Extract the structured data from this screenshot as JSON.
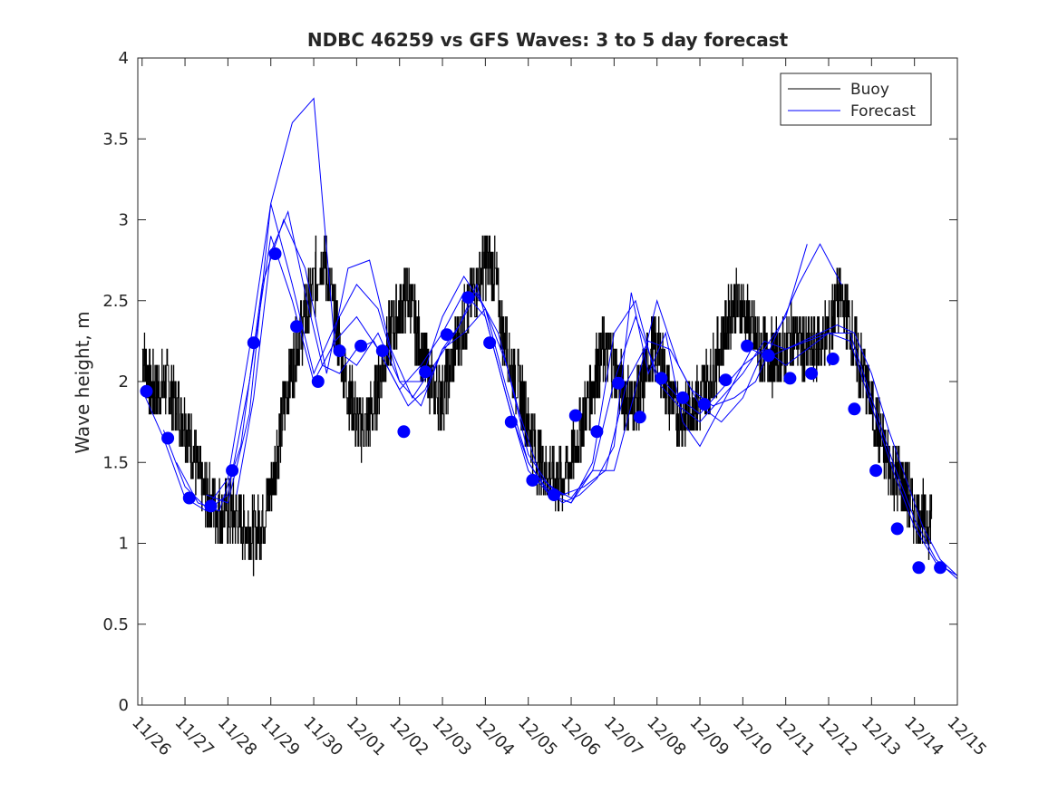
{
  "chart_data": {
    "type": "line",
    "title": "NDBC 46259 vs GFS Waves: 3 to 5 day forecast",
    "xlabel": "",
    "ylabel": "Wave height, m",
    "x_unit": "days since 11/26",
    "xlim": [
      -0.1,
      19.0
    ],
    "ylim": [
      0,
      4
    ],
    "yticks": [
      0,
      0.5,
      1,
      1.5,
      2,
      2.5,
      3,
      3.5,
      4
    ],
    "ytick_labels": [
      "0",
      "0.5",
      "1",
      "1.5",
      "2",
      "2.5",
      "3",
      "3.5",
      "4"
    ],
    "xticks": [
      0,
      1,
      2,
      3,
      4,
      5,
      6,
      7,
      8,
      9,
      10,
      11,
      12,
      13,
      14,
      15,
      16,
      17,
      18,
      19
    ],
    "xtick_labels": [
      "11/26",
      "11/27",
      "11/28",
      "11/29",
      "11/30",
      "12/01",
      "12/02",
      "12/03",
      "12/04",
      "12/05",
      "12/06",
      "12/07",
      "12/08",
      "12/09",
      "12/10",
      "12/11",
      "12/12",
      "12/13",
      "12/14",
      "12/15"
    ],
    "legend": {
      "position": "top-right",
      "entries": [
        {
          "label": "Buoy",
          "color": "#000000"
        },
        {
          "label": "Forecast",
          "color": "#0000ff"
        }
      ]
    },
    "colors": {
      "buoy": "#000000",
      "forecast": "#0000ff",
      "points": "#0000ff",
      "axis": "#262626"
    },
    "series": [
      {
        "name": "Buoy",
        "kind": "line",
        "noisy": true,
        "x": [
          0,
          0.2,
          0.4,
          0.6,
          0.8,
          1.0,
          1.2,
          1.4,
          1.6,
          1.8,
          2.0,
          2.2,
          2.4,
          2.6,
          2.8,
          3.0,
          3.2,
          3.4,
          3.6,
          3.8,
          4.0,
          4.2,
          4.4,
          4.6,
          4.8,
          5.0,
          5.2,
          5.4,
          5.6,
          5.8,
          6.0,
          6.2,
          6.4,
          6.6,
          6.8,
          7.0,
          7.2,
          7.4,
          7.6,
          7.8,
          8.0,
          8.2,
          8.4,
          8.6,
          8.8,
          9.0,
          9.2,
          9.4,
          9.6,
          9.8,
          10.0,
          10.2,
          10.4,
          10.6,
          10.8,
          11.0,
          11.2,
          11.4,
          11.6,
          11.8,
          12.0,
          12.2,
          12.4,
          12.6,
          12.8,
          13.0,
          13.2,
          13.4,
          13.6,
          13.8,
          14.0,
          14.2,
          14.4,
          14.6,
          14.8,
          15.0,
          15.2,
          15.4,
          15.6,
          15.8,
          16.0,
          16.2,
          16.4,
          16.6,
          16.8,
          17.0,
          17.2,
          17.4,
          17.6,
          17.8,
          18.0,
          18.2,
          18.4
        ],
        "y": [
          2.2,
          1.95,
          1.95,
          2.0,
          1.85,
          1.75,
          1.55,
          1.35,
          1.25,
          1.2,
          1.2,
          1.15,
          1.1,
          1.05,
          1.15,
          1.35,
          1.65,
          2.0,
          2.2,
          2.4,
          2.6,
          2.8,
          2.55,
          2.2,
          1.95,
          1.75,
          1.7,
          1.85,
          2.1,
          2.3,
          2.45,
          2.55,
          2.3,
          2.1,
          1.95,
          1.9,
          2.1,
          2.3,
          2.45,
          2.6,
          2.75,
          2.7,
          2.3,
          2.1,
          1.95,
          1.75,
          1.55,
          1.45,
          1.4,
          1.4,
          1.5,
          1.7,
          1.9,
          2.1,
          2.2,
          2.1,
          1.95,
          1.85,
          1.9,
          2.15,
          2.2,
          2.0,
          1.85,
          1.8,
          1.85,
          1.9,
          2.0,
          2.15,
          2.35,
          2.5,
          2.45,
          2.3,
          2.2,
          2.15,
          2.15,
          2.2,
          2.3,
          2.2,
          2.2,
          2.25,
          2.3,
          2.5,
          2.45,
          2.2,
          2.05,
          1.85,
          1.65,
          1.5,
          1.4,
          1.3,
          1.2,
          1.15,
          1.15
        ]
      },
      {
        "name": "Forecast 1",
        "kind": "line",
        "x": [
          0,
          0.5,
          1.0,
          1.5,
          2.0,
          2.5,
          3.0,
          3.5,
          4.0,
          4.5,
          5.0,
          5.5,
          6.0,
          6.5,
          7.0,
          7.5,
          8.0,
          8.5,
          9.0,
          9.5,
          10.0,
          10.5,
          11.0,
          11.5,
          12.0,
          12.5,
          13.0,
          13.5,
          14.0,
          14.5,
          15.0,
          15.5,
          16.0,
          16.5,
          17.0,
          17.5,
          18.0,
          18.5,
          19.0
        ],
        "y": [
          1.95,
          1.65,
          1.28,
          1.2,
          1.3,
          2.0,
          2.9,
          2.5,
          2.0,
          2.25,
          2.4,
          2.2,
          1.95,
          2.1,
          2.3,
          2.55,
          2.4,
          1.9,
          1.45,
          1.3,
          1.25,
          1.45,
          2.0,
          2.4,
          2.05,
          1.9,
          1.8,
          1.95,
          2.1,
          2.2,
          2.1,
          2.2,
          2.3,
          2.3,
          1.9,
          1.5,
          1.15,
          0.9,
          0.78
        ]
      },
      {
        "name": "Forecast 2",
        "kind": "line",
        "x": [
          0.5,
          1.0,
          1.5,
          2.0,
          2.5,
          3.0,
          3.5,
          4.0,
          4.5,
          5.0,
          5.5,
          6.0,
          6.5,
          7.0,
          7.5,
          8.0,
          8.5,
          9.0,
          9.5,
          10.0,
          10.5,
          11.0,
          11.5,
          12.0,
          12.5,
          13.0,
          13.5,
          14.0,
          14.5,
          15.0,
          15.5,
          16.0,
          16.5,
          17.0,
          17.5,
          18.0,
          18.5,
          19.0
        ],
        "y": [
          1.7,
          1.35,
          1.22,
          1.4,
          2.2,
          3.1,
          2.6,
          2.05,
          2.35,
          2.6,
          2.45,
          2.0,
          2.0,
          2.4,
          2.65,
          2.45,
          1.95,
          1.5,
          1.3,
          1.25,
          1.5,
          2.3,
          2.5,
          2.0,
          1.85,
          1.75,
          1.9,
          2.05,
          2.25,
          2.2,
          2.25,
          2.3,
          2.25,
          1.85,
          1.45,
          1.1,
          0.88,
          0.8
        ]
      },
      {
        "name": "Forecast 3",
        "kind": "line",
        "x": [
          2.2,
          2.6,
          3.0,
          3.4,
          3.8,
          4.2,
          4.6,
          5.0,
          5.4,
          5.8,
          6.2,
          6.6,
          7.0,
          7.4,
          7.8,
          8.2,
          8.6,
          9.0,
          9.4,
          9.8,
          10.2,
          10.6,
          11.0,
          11.4,
          11.8,
          12.2,
          12.6,
          13.0,
          13.4,
          13.8,
          14.2,
          14.6,
          15.0,
          15.4,
          15.8,
          16.2,
          16.6,
          17.0,
          17.4,
          17.8,
          18.2,
          18.6,
          19.0
        ],
        "y": [
          1.3,
          1.9,
          2.8,
          3.05,
          2.55,
          2.1,
          2.05,
          2.2,
          2.25,
          2.05,
          1.85,
          1.95,
          2.2,
          2.35,
          2.6,
          2.2,
          1.8,
          1.5,
          1.35,
          1.25,
          1.3,
          1.4,
          1.6,
          2.55,
          2.05,
          2.3,
          1.75,
          1.6,
          1.8,
          2.0,
          2.2,
          2.15,
          2.2,
          2.25,
          2.3,
          2.35,
          2.3,
          2.05,
          1.7,
          1.4,
          1.1,
          0.9,
          0.8
        ]
      },
      {
        "name": "Forecast 4",
        "kind": "line",
        "x": [
          1.5,
          2.0,
          2.5,
          3.0,
          3.5,
          4.0,
          4.5,
          5.0,
          5.5,
          6.0,
          6.5,
          7.0,
          7.5,
          8.0,
          8.5,
          9.0,
          9.5,
          10.0,
          10.5,
          11.0,
          11.5,
          12.0,
          12.5,
          13.0,
          13.5,
          14.0,
          14.5,
          15.0,
          15.5
        ],
        "y": [
          1.3,
          1.25,
          1.8,
          3.1,
          3.6,
          3.75,
          2.2,
          2.1,
          2.3,
          2.0,
          1.85,
          2.2,
          2.3,
          2.45,
          2.1,
          1.55,
          1.35,
          1.28,
          1.45,
          1.45,
          1.95,
          2.5,
          2.1,
          1.85,
          1.75,
          1.9,
          2.2,
          2.4,
          2.85
        ]
      },
      {
        "name": "Forecast 5",
        "kind": "line",
        "x": [
          0.8,
          1.3,
          1.8,
          2.3,
          2.8,
          3.3,
          3.8,
          4.3,
          4.8,
          5.3,
          5.8,
          6.3,
          6.8,
          7.3,
          7.8,
          8.3,
          8.8,
          9.3,
          9.8,
          10.3,
          10.8,
          11.3,
          11.8,
          12.3,
          12.8,
          13.3,
          13.8,
          14.3,
          14.8,
          15.3,
          15.8,
          16.3
        ],
        "y": [
          1.5,
          1.25,
          1.2,
          1.6,
          2.6,
          3.0,
          2.7,
          2.05,
          2.7,
          2.75,
          2.2,
          1.9,
          2.1,
          2.3,
          2.55,
          2.3,
          1.8,
          1.4,
          1.3,
          1.35,
          1.45,
          2.0,
          2.25,
          2.2,
          1.95,
          1.85,
          1.9,
          2.0,
          2.3,
          2.6,
          2.85,
          2.6
        ]
      },
      {
        "name": "Forecast points",
        "kind": "scatter",
        "x": [
          0.1,
          0.6,
          1.1,
          1.6,
          2.1,
          2.6,
          3.1,
          3.6,
          4.1,
          4.6,
          5.1,
          5.6,
          6.1,
          6.6,
          7.1,
          7.6,
          8.1,
          8.6,
          9.1,
          9.6,
          10.1,
          10.6,
          11.1,
          11.6,
          12.1,
          12.6,
          13.1,
          13.6,
          14.1,
          14.6,
          15.1,
          15.6,
          16.1,
          16.6,
          17.1,
          17.6,
          18.1,
          18.6
        ],
        "y": [
          1.94,
          1.65,
          1.28,
          1.23,
          1.45,
          2.24,
          2.79,
          2.34,
          2.0,
          2.19,
          2.22,
          2.19,
          1.69,
          2.06,
          2.29,
          2.52,
          2.24,
          1.75,
          1.39,
          1.3,
          1.79,
          1.69,
          1.99,
          1.78,
          2.02,
          1.9,
          1.86,
          2.01,
          2.22,
          2.16,
          2.02,
          2.05,
          2.14,
          1.83,
          1.45,
          1.09,
          0.85,
          0.85
        ]
      }
    ]
  }
}
